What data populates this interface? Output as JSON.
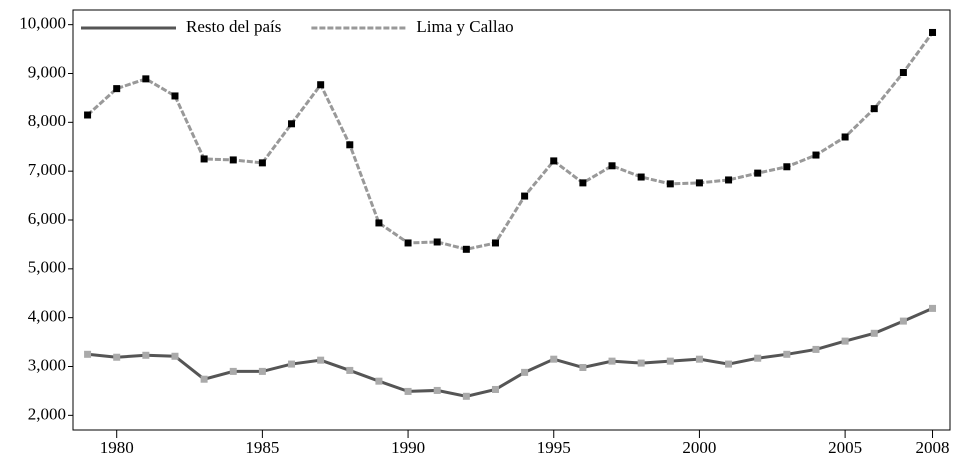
{
  "chart_data": {
    "type": "line",
    "x": [
      1979,
      1980,
      1981,
      1982,
      1983,
      1984,
      1985,
      1986,
      1987,
      1988,
      1989,
      1990,
      1991,
      1992,
      1993,
      1994,
      1995,
      1996,
      1997,
      1998,
      1999,
      2000,
      2001,
      2002,
      2003,
      2004,
      2005,
      2006,
      2007,
      2008
    ],
    "series": [
      {
        "name": "Resto del país",
        "color": "#555555",
        "marker_color": "#aaaaaa",
        "dashed": false,
        "values": [
          3250,
          3190,
          3230,
          3210,
          2740,
          2900,
          2900,
          3050,
          3130,
          2920,
          2700,
          2490,
          2510,
          2390,
          2530,
          2880,
          3150,
          2980,
          3110,
          3070,
          3110,
          3150,
          3050,
          3170,
          3250,
          3350,
          3520,
          3680,
          3930,
          4190
        ]
      },
      {
        "name": "Lima y Callao",
        "color": "#999999",
        "marker_color": "#000000",
        "dashed": true,
        "values": [
          8150,
          8690,
          8890,
          8540,
          7250,
          7230,
          7170,
          7970,
          8770,
          7540,
          5940,
          5530,
          5550,
          5400,
          5530,
          6490,
          7210,
          6760,
          7110,
          6880,
          6740,
          6760,
          6820,
          6960,
          7090,
          7330,
          7700,
          8280,
          9020,
          9840
        ]
      }
    ],
    "xlim": [
      1978.5,
      2008.6
    ],
    "xticks": [
      1980,
      1985,
      1990,
      1995,
      2000,
      2005,
      2008
    ],
    "ylim": [
      1700,
      10300
    ],
    "yticks": [
      {
        "value": 2000,
        "label": "2,000"
      },
      {
        "value": 3000,
        "label": "3,000"
      },
      {
        "value": 4000,
        "label": "4,000"
      },
      {
        "value": 5000,
        "label": "5,000"
      },
      {
        "value": 6000,
        "label": "6,000"
      },
      {
        "value": 7000,
        "label": "7,000"
      },
      {
        "value": 8000,
        "label": "8,000"
      },
      {
        "value": 9000,
        "label": "9,000"
      },
      {
        "value": 10000,
        "label": "10,000"
      }
    ],
    "legend": "top-left"
  }
}
